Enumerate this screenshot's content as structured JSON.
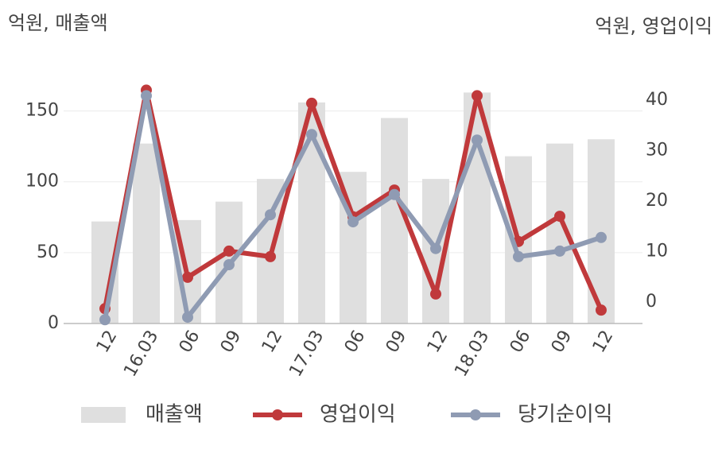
{
  "chart_data": {
    "type": "bar-line",
    "y_label": "억원, 매출액",
    "y2_label": "억원, 영업이익",
    "categories": [
      "12",
      "16.03",
      "06",
      "09",
      "12",
      "17.03",
      "06",
      "09",
      "12",
      "18.03",
      "06",
      "09",
      "12"
    ],
    "series": [
      {
        "name": "매출액",
        "type": "bar",
        "color": "#dfdfdf",
        "values": [
          72,
          127,
          73,
          86,
          102,
          156,
          107,
          145,
          102,
          163,
          118,
          127,
          130
        ]
      },
      {
        "name": "영업이익",
        "type": "line",
        "axis": "y2",
        "color": "#c0393b",
        "values": [
          -1.3,
          42,
          4.9,
          10.1,
          9,
          39.4,
          16.9,
          22.2,
          1.6,
          40.9,
          12,
          17,
          -1.6
        ]
      },
      {
        "name": "당기순이익",
        "type": "line",
        "axis": "y2",
        "color": "#8f9bb3",
        "values": [
          -3.5,
          40.9,
          -3,
          7.4,
          17.3,
          33.2,
          15.9,
          21.3,
          10.6,
          32.1,
          9,
          10.1,
          12.8
        ]
      }
    ],
    "ylim": [
      0,
      175
    ],
    "yticks": [
      0,
      50,
      100,
      150
    ],
    "y2lim": [
      -4.25,
      44.9
    ],
    "y2ticks": [
      0,
      10,
      20,
      30,
      40
    ],
    "grid": true
  }
}
